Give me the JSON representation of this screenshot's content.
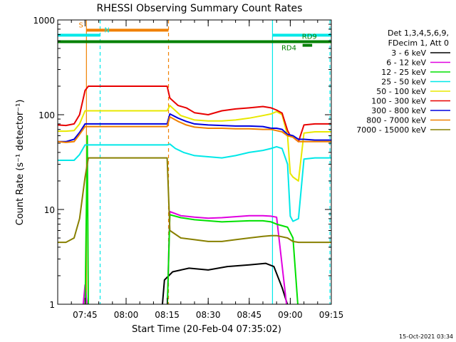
{
  "chart_data": {
    "type": "line",
    "title": "RHESSI Observing Summary Count Rates",
    "xlabel": "Start Time (20-Feb-04 07:35:02)",
    "ylabel": "Count Rate (s⁻¹ detector⁻¹)",
    "yscale": "log",
    "ylim": [
      1,
      1000
    ],
    "xlim_minutes": [
      0,
      100
    ],
    "x_ticks": [
      {
        "label": "07:45",
        "value": 10
      },
      {
        "label": "08:00",
        "value": 25
      },
      {
        "label": "08:15",
        "value": 40
      },
      {
        "label": "08:30",
        "value": 55
      },
      {
        "label": "08:45",
        "value": 70
      },
      {
        "label": "09:00",
        "value": 85
      },
      {
        "label": "09:15",
        "value": 100
      }
    ],
    "y_ticks": [
      {
        "label": "1",
        "value": 1
      },
      {
        "label": "10",
        "value": 10
      },
      {
        "label": "100",
        "value": 100
      },
      {
        "label": "1000",
        "value": 1000
      }
    ],
    "legend_header": [
      "Det 1,3,4,5,6,9,",
      "FDecim 1, Att 0"
    ],
    "series": [
      {
        "name": "3 - 6 keV",
        "color": "#000000",
        "points": [
          [
            0,
            0.8
          ],
          [
            38,
            0.8
          ],
          [
            39,
            1.8
          ],
          [
            42,
            2.2
          ],
          [
            48,
            2.4
          ],
          [
            55,
            2.3
          ],
          [
            62,
            2.5
          ],
          [
            70,
            2.6
          ],
          [
            76,
            2.7
          ],
          [
            79,
            2.5
          ],
          [
            82,
            1.5
          ],
          [
            85,
            0.8
          ],
          [
            100,
            0.8
          ]
        ]
      },
      {
        "name": "6 - 12 keV",
        "color": "#e000e0",
        "points": [
          [
            0,
            0.8
          ],
          [
            9,
            0.8
          ],
          [
            10,
            1.6
          ],
          [
            11,
            0.8
          ],
          [
            40,
            0.8
          ],
          [
            41,
            9.5
          ],
          [
            45,
            8.6
          ],
          [
            50,
            8.3
          ],
          [
            55,
            8.1
          ],
          [
            60,
            8.2
          ],
          [
            65,
            8.4
          ],
          [
            70,
            8.6
          ],
          [
            75,
            8.6
          ],
          [
            78,
            8.5
          ],
          [
            80,
            8.3
          ],
          [
            84,
            0.8
          ],
          [
            100,
            0.8
          ]
        ]
      },
      {
        "name": "12 - 25 keV",
        "color": "#00e000",
        "points": [
          [
            0,
            0.8
          ],
          [
            10,
            0.8
          ],
          [
            10.8,
            60
          ],
          [
            11.2,
            0.8
          ],
          [
            40,
            0.8
          ],
          [
            41,
            8.8
          ],
          [
            45,
            8.2
          ],
          [
            50,
            7.8
          ],
          [
            55,
            7.6
          ],
          [
            60,
            7.4
          ],
          [
            65,
            7.5
          ],
          [
            70,
            7.6
          ],
          [
            75,
            7.6
          ],
          [
            78,
            7.4
          ],
          [
            80,
            7.0
          ],
          [
            84,
            6.5
          ],
          [
            86,
            5.0
          ],
          [
            88,
            0.8
          ],
          [
            100,
            0.8
          ]
        ]
      },
      {
        "name": "25 - 50 keV",
        "color": "#00e8e8",
        "points": [
          [
            0,
            33
          ],
          [
            3,
            33
          ],
          [
            6,
            33
          ],
          [
            8,
            38
          ],
          [
            10,
            48
          ],
          [
            11.2,
            48
          ],
          [
            40,
            48
          ],
          [
            41,
            49
          ],
          [
            43,
            44
          ],
          [
            46,
            40
          ],
          [
            50,
            37
          ],
          [
            55,
            36
          ],
          [
            60,
            35
          ],
          [
            65,
            37
          ],
          [
            70,
            40
          ],
          [
            75,
            42
          ],
          [
            78,
            44
          ],
          [
            80,
            46
          ],
          [
            82,
            44
          ],
          [
            84,
            30
          ],
          [
            85,
            8.5
          ],
          [
            86,
            7.5
          ],
          [
            88,
            8.0
          ],
          [
            90,
            34
          ],
          [
            94,
            35
          ],
          [
            100,
            35
          ]
        ]
      },
      {
        "name": "50 - 100 keV",
        "color": "#e8e800",
        "points": [
          [
            0,
            67
          ],
          [
            3,
            67
          ],
          [
            6,
            68
          ],
          [
            8,
            80
          ],
          [
            10,
            110
          ],
          [
            11.2,
            110
          ],
          [
            40,
            110
          ],
          [
            41,
            125
          ],
          [
            45,
            98
          ],
          [
            50,
            88
          ],
          [
            55,
            86
          ],
          [
            60,
            86
          ],
          [
            65,
            88
          ],
          [
            70,
            92
          ],
          [
            75,
            98
          ],
          [
            78,
            102
          ],
          [
            80,
            108
          ],
          [
            82,
            100
          ],
          [
            84,
            60
          ],
          [
            85,
            24
          ],
          [
            86,
            22
          ],
          [
            88,
            20
          ],
          [
            90,
            64
          ],
          [
            94,
            66
          ],
          [
            100,
            66
          ]
        ]
      },
      {
        "name": "100 - 300 keV",
        "color": "#e80000",
        "points": [
          [
            0,
            78
          ],
          [
            3,
            77
          ],
          [
            6,
            80
          ],
          [
            8,
            100
          ],
          [
            10,
            180
          ],
          [
            11.2,
            200
          ],
          [
            40,
            200
          ],
          [
            41,
            150
          ],
          [
            44,
            125
          ],
          [
            47,
            118
          ],
          [
            50,
            105
          ],
          [
            55,
            100
          ],
          [
            60,
            110
          ],
          [
            65,
            115
          ],
          [
            70,
            118
          ],
          [
            75,
            122
          ],
          [
            78,
            118
          ],
          [
            80,
            112
          ],
          [
            82,
            104
          ],
          [
            84,
            68
          ],
          [
            85,
            60
          ],
          [
            86,
            58
          ],
          [
            88,
            52
          ],
          [
            90,
            78
          ],
          [
            94,
            80
          ],
          [
            100,
            80
          ]
        ]
      },
      {
        "name": "300 - 800 keV",
        "color": "#0000e0",
        "points": [
          [
            0,
            52
          ],
          [
            3,
            52
          ],
          [
            6,
            55
          ],
          [
            8,
            65
          ],
          [
            10,
            80
          ],
          [
            11.2,
            80
          ],
          [
            40,
            80
          ],
          [
            41,
            102
          ],
          [
            44,
            92
          ],
          [
            47,
            85
          ],
          [
            50,
            80
          ],
          [
            55,
            78
          ],
          [
            60,
            77
          ],
          [
            65,
            76
          ],
          [
            70,
            76
          ],
          [
            75,
            75
          ],
          [
            78,
            72
          ],
          [
            80,
            72
          ],
          [
            82,
            70
          ],
          [
            84,
            62
          ],
          [
            86,
            60
          ],
          [
            88,
            55
          ],
          [
            90,
            55
          ],
          [
            94,
            54
          ],
          [
            100,
            54
          ]
        ]
      },
      {
        "name": "800 - 7000 keV",
        "color": "#f08000",
        "points": [
          [
            0,
            52
          ],
          [
            3,
            51
          ],
          [
            6,
            52
          ],
          [
            8,
            62
          ],
          [
            10,
            75
          ],
          [
            11.2,
            75
          ],
          [
            40,
            75
          ],
          [
            41,
            95
          ],
          [
            44,
            85
          ],
          [
            47,
            78
          ],
          [
            50,
            74
          ],
          [
            55,
            72
          ],
          [
            60,
            72
          ],
          [
            65,
            71
          ],
          [
            70,
            71
          ],
          [
            75,
            70
          ],
          [
            78,
            70
          ],
          [
            80,
            68
          ],
          [
            82,
            66
          ],
          [
            84,
            60
          ],
          [
            86,
            58
          ],
          [
            88,
            52
          ],
          [
            90,
            52
          ],
          [
            94,
            52
          ],
          [
            100,
            52
          ]
        ]
      },
      {
        "name": "7000 - 15000 keV",
        "color": "#888000",
        "points": [
          [
            0,
            4.5
          ],
          [
            3,
            4.5
          ],
          [
            6,
            5.0
          ],
          [
            8,
            8
          ],
          [
            10,
            22
          ],
          [
            11.2,
            35
          ],
          [
            40,
            35
          ],
          [
            41,
            6.0
          ],
          [
            45,
            5.0
          ],
          [
            50,
            4.8
          ],
          [
            55,
            4.6
          ],
          [
            60,
            4.6
          ],
          [
            65,
            4.8
          ],
          [
            70,
            5.0
          ],
          [
            75,
            5.2
          ],
          [
            78,
            5.3
          ],
          [
            80,
            5.3
          ],
          [
            84,
            5.0
          ],
          [
            86,
            4.6
          ],
          [
            88,
            4.5
          ],
          [
            90,
            4.5
          ],
          [
            94,
            4.5
          ],
          [
            100,
            4.5
          ]
        ]
      }
    ],
    "vlines": [
      {
        "x": 10.5,
        "color": "#f08000",
        "style": "solid"
      },
      {
        "x": 15.5,
        "color": "#00e8e8",
        "style": "dashed"
      },
      {
        "x": 40.5,
        "color": "#f08000",
        "style": "dashed"
      },
      {
        "x": 78.5,
        "color": "#00e8e8",
        "style": "solid"
      },
      {
        "x": 99.5,
        "color": "#00e8e8",
        "style": "dashed"
      }
    ],
    "flags": [
      {
        "label": "S",
        "color": "#f08000",
        "y": 780,
        "segments": [
          [
            10.5,
            40.5
          ]
        ],
        "label_x": 8.5
      },
      {
        "label": "N",
        "color": "#00e8e8",
        "y": 690,
        "segments": [
          [
            0,
            15.5
          ],
          [
            78.5,
            100
          ]
        ],
        "label_x": 18
      },
      {
        "label": "RD9",
        "color": "#008000",
        "y": 590,
        "segments": [
          [
            0,
            100
          ]
        ],
        "label_x": 92
      },
      {
        "label": "RD4",
        "color": "#008000",
        "y": 540,
        "segments": [
          [
            89.5,
            93
          ]
        ],
        "label_x": 84.5
      }
    ],
    "timestamp": "15-Oct-2021 03:34"
  }
}
